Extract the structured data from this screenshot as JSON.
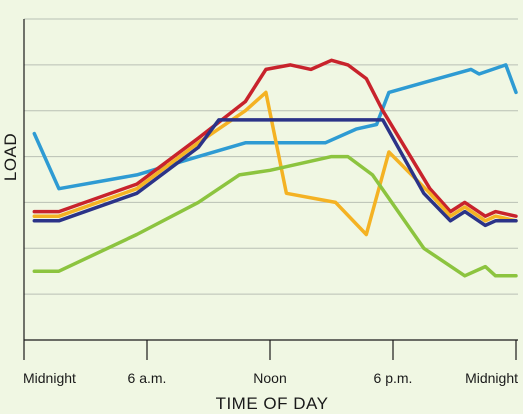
{
  "chart_data": {
    "type": "line",
    "xlabel": "TIME OF DAY",
    "ylabel": "LOAD",
    "x_ticks": [
      {
        "hour": 0,
        "label": "Midnight"
      },
      {
        "hour": 6,
        "label": "6 a.m."
      },
      {
        "hour": 12,
        "label": "Noon"
      },
      {
        "hour": 18,
        "label": "6 p.m."
      },
      {
        "hour": 24,
        "label": "Midnight"
      }
    ],
    "xlim": [
      0,
      24
    ],
    "ylim": [
      0,
      7
    ],
    "grid": true,
    "legend": "none",
    "series": [
      {
        "color": "#2e9bd3",
        "hours": [
          0.5,
          1.7,
          5.5,
          8.5,
          10.8,
          14.7,
          16.2,
          17.2,
          17.8,
          20.2,
          21.8,
          22.2,
          23.5,
          24.0
        ],
        "values": [
          4.5,
          3.3,
          3.6,
          4.0,
          4.3,
          4.3,
          4.6,
          4.7,
          5.4,
          5.7,
          5.9,
          5.8,
          6.0,
          5.4
        ]
      },
      {
        "color": "#c8232c",
        "hours": [
          0.5,
          1.7,
          5.5,
          8.5,
          10.8,
          11.8,
          13.0,
          14.0,
          15.0,
          15.8,
          16.7,
          17.5,
          19.8,
          20.8,
          21.5,
          22.5,
          23.0,
          24.0
        ],
        "values": [
          2.8,
          2.8,
          3.4,
          4.4,
          5.2,
          5.9,
          6.0,
          5.9,
          6.1,
          6.0,
          5.7,
          5.0,
          3.3,
          2.8,
          3.0,
          2.7,
          2.8,
          2.7
        ]
      },
      {
        "color": "#f4b223",
        "hours": [
          0.5,
          1.7,
          5.5,
          8.5,
          10.8,
          11.8,
          12.8,
          15.2,
          16.7,
          17.8,
          19.8,
          20.8,
          21.5,
          22.5,
          23.0,
          24.0
        ],
        "values": [
          2.7,
          2.7,
          3.3,
          4.3,
          5.0,
          5.4,
          3.2,
          3.0,
          2.3,
          4.1,
          3.2,
          2.7,
          2.9,
          2.6,
          2.7,
          2.6
        ]
      },
      {
        "color": "#2b3388",
        "hours": [
          0.5,
          1.7,
          5.5,
          8.5,
          9.5,
          12.5,
          17.5,
          19.5,
          20.8,
          21.5,
          22.5,
          23.0,
          24.0
        ],
        "values": [
          2.6,
          2.6,
          3.2,
          4.2,
          4.8,
          4.8,
          4.8,
          3.2,
          2.6,
          2.8,
          2.5,
          2.6,
          2.6
        ]
      },
      {
        "color": "#8cc43f",
        "hours": [
          0.5,
          1.7,
          5.5,
          8.5,
          10.5,
          12.0,
          15.0,
          15.8,
          17.0,
          19.5,
          21.5,
          22.5,
          23.0,
          24.0
        ],
        "values": [
          1.5,
          1.5,
          2.3,
          3.0,
          3.6,
          3.7,
          4.0,
          4.0,
          3.6,
          2.0,
          1.4,
          1.6,
          1.4,
          1.4
        ]
      }
    ]
  }
}
